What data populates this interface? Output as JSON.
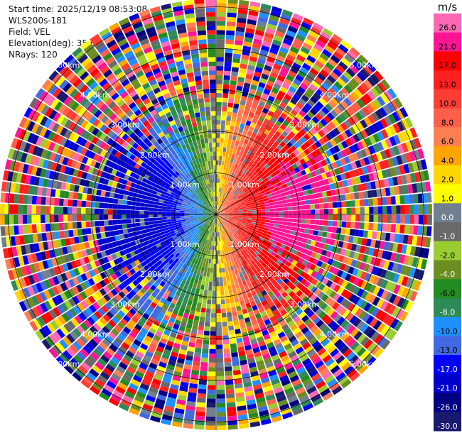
{
  "header": {
    "start_label": "Start time:",
    "start_value": "2025/12/19 08:53:08",
    "instrument": "WLS200s-181",
    "field_label": "Field:",
    "field_value": "VEL",
    "elev_label": "Elevation(deg):",
    "elev_value": "35.00",
    "nrays_label": "NRays:",
    "nrays_value": "120"
  },
  "chart_data": {
    "type": "heatmap",
    "subtype": "ppi-polar",
    "field": "VEL",
    "units": "m/s",
    "n_rays": 120,
    "ring_labels": [
      "1.00km",
      "2.00km",
      "3.00km",
      "4.00km",
      "5.00km"
    ],
    "ring_ranges_km": [
      1,
      2,
      3,
      4,
      5
    ],
    "max_range_km": 5.2,
    "colorbar": {
      "title": "m/s",
      "tick_labels": [
        "26.0",
        "21.0",
        "17.0",
        "13.0",
        "10.0",
        "8.0",
        "6.0",
        "4.0",
        "2.0",
        "1.0",
        "0.0",
        "-1.0",
        "-2.0",
        "-4.0",
        "-6.0",
        "-8.0",
        "-10.0",
        "-13.0",
        "-17.0",
        "-21.0",
        "-26.0",
        "-30.0"
      ],
      "colors": [
        "#ff69b4",
        "#ff1493",
        "#ff0000",
        "#ff2020",
        "#ff3e33",
        "#ff5f4a",
        "#ff7f50",
        "#ffa500",
        "#ffd700",
        "#ffff00",
        "#708090",
        "#696969",
        "#9acd32",
        "#6b8e23",
        "#228b22",
        "#2e8b57",
        "#1e90ff",
        "#4169e1",
        "#0000ff",
        "#0000cd",
        "#000080",
        "#191970"
      ]
    },
    "wind_pattern": {
      "positive_side": "east",
      "negative_side": "west",
      "noise_beyond_km": 2.9
    },
    "grid": true,
    "crosshair": true
  }
}
